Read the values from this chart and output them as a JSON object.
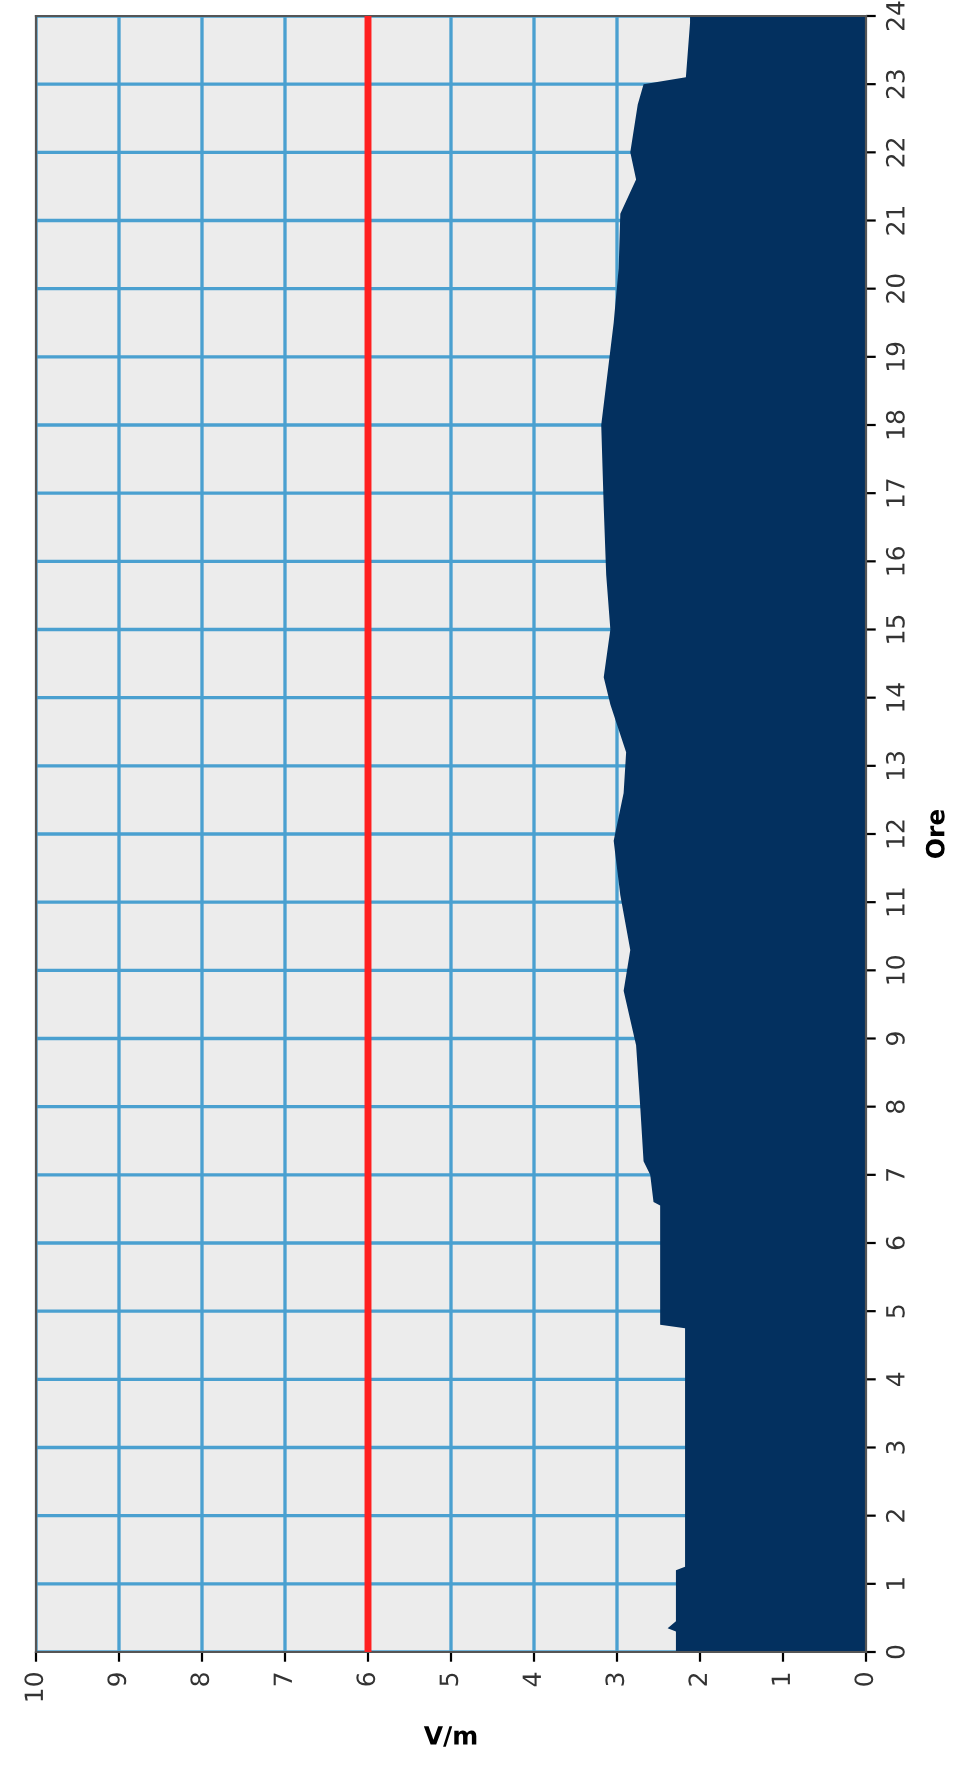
{
  "chart_data": {
    "type": "area",
    "orientation": "horizontal",
    "xlabel": "V/m",
    "ylabel": "Ore",
    "x": [
      0,
      0.3,
      0.35,
      0.45,
      1.2,
      1.25,
      4.75,
      4.8,
      6.55,
      6.6,
      7.0,
      7.2,
      8.0,
      8.9,
      9.7,
      10.3,
      11.1,
      11.9,
      12.6,
      13.2,
      13.9,
      14.3,
      15.0,
      15.8,
      16.8,
      18.0,
      18.8,
      19.5,
      20.3,
      21.1,
      21.6,
      22.0,
      22.7,
      23.0,
      23.1,
      23.9,
      24
    ],
    "series": [
      {
        "color": "#03305f",
        "values": [
          2.29,
          2.29,
          2.39,
          2.29,
          2.29,
          2.18,
          2.18,
          2.48,
          2.48,
          2.56,
          2.6,
          2.68,
          2.72,
          2.77,
          2.92,
          2.84,
          2.96,
          3.04,
          2.92,
          2.89,
          3.08,
          3.16,
          3.08,
          3.13,
          3.16,
          3.19,
          3.11,
          3.04,
          2.98,
          2.96,
          2.77,
          2.84,
          2.75,
          2.68,
          2.17,
          2.12,
          2.12
        ]
      }
    ],
    "xlim": [
      10,
      0
    ],
    "xticks": [
      0,
      1,
      2,
      3,
      4,
      5,
      6,
      7,
      8,
      9,
      10
    ],
    "ylim": [
      0,
      24
    ],
    "yticks": [
      0,
      1,
      2,
      3,
      4,
      5,
      6,
      7,
      8,
      9,
      10,
      11,
      12,
      13,
      14,
      15,
      16,
      17,
      18,
      19,
      20,
      21,
      22,
      23,
      24
    ],
    "ref_lines": [
      {
        "axis": "x",
        "value": 6,
        "color": "#ff2020"
      }
    ],
    "grid": true
  }
}
